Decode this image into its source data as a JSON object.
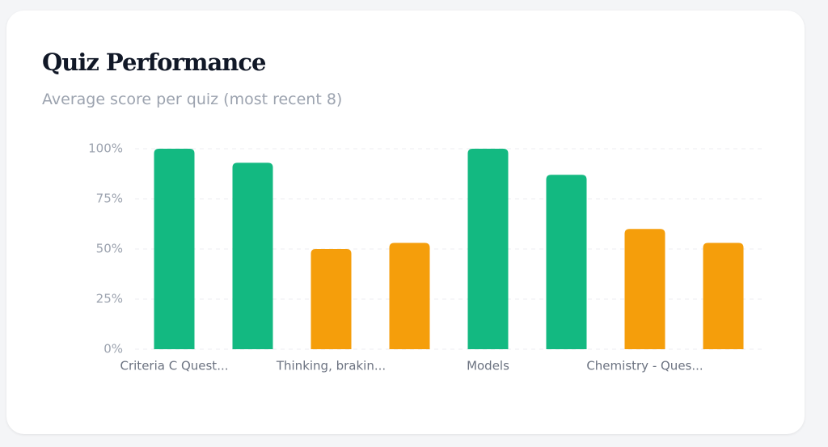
{
  "chart_data": {
    "type": "bar",
    "title": "Quiz Performance",
    "subtitle": "Average score per quiz (most recent 8)",
    "categories": [
      "Criteria C Quest...",
      null,
      "Thinking, brakin...",
      null,
      "Models",
      null,
      "Chemistry - Ques...",
      null
    ],
    "values": [
      100,
      93,
      50,
      53,
      100,
      87,
      60,
      53
    ],
    "colors": [
      "#13b981",
      "#13b981",
      "#f59e0b",
      "#f59e0b",
      "#13b981",
      "#13b981",
      "#f59e0b",
      "#f59e0b"
    ],
    "ylim": [
      0,
      100
    ],
    "yticks": [
      {
        "value": 0,
        "label": "0%"
      },
      {
        "value": 25,
        "label": "25%"
      },
      {
        "value": 50,
        "label": "50%"
      },
      {
        "value": 75,
        "label": "75%"
      },
      {
        "value": 100,
        "label": "100%"
      }
    ],
    "grid": true
  }
}
